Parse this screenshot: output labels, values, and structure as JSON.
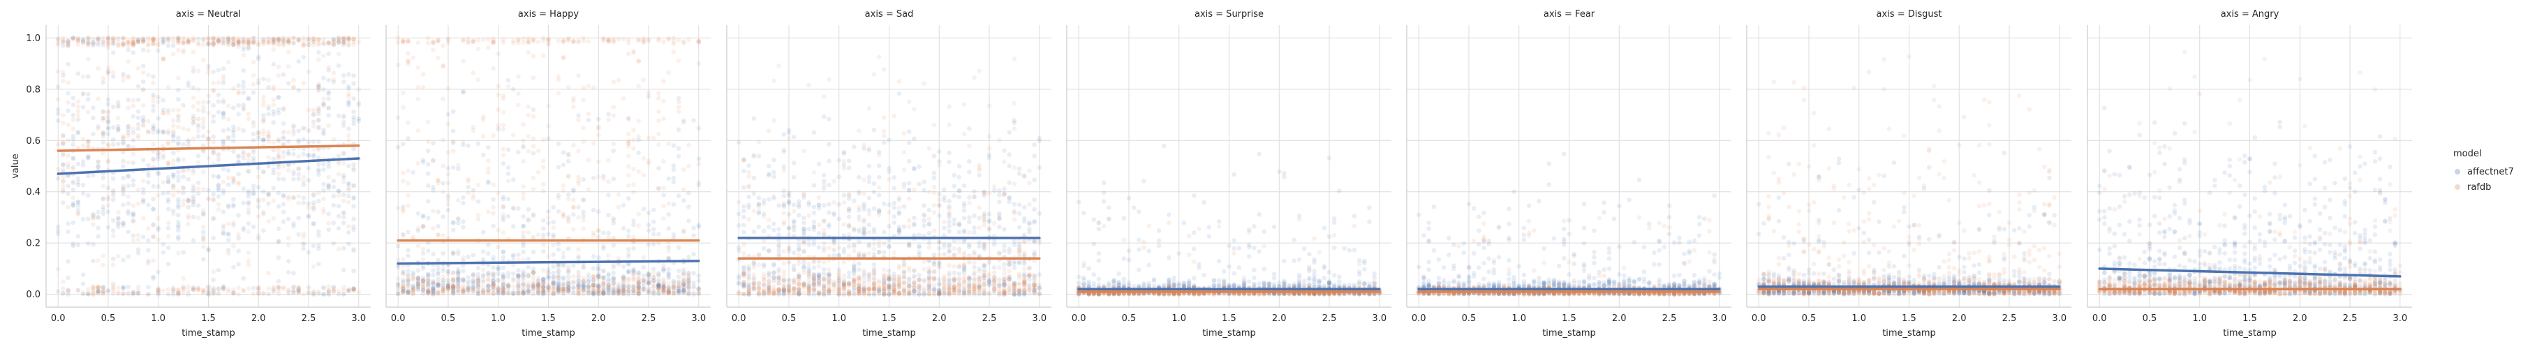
{
  "chart_data": {
    "type": "scatter",
    "facet_prefix": "axis = ",
    "facets": [
      "Neutral",
      "Happy",
      "Sad",
      "Surprise",
      "Fear",
      "Disgust",
      "Angry"
    ],
    "xlabel": "time_stamp",
    "ylabel": "value",
    "xlim": [
      -0.12,
      3.12
    ],
    "ylim": [
      -0.05,
      1.05
    ],
    "x_ticks": [
      0.0,
      0.5,
      1.0,
      1.5,
      2.0,
      2.5,
      3.0
    ],
    "x_tick_labels": [
      "0.0",
      "0.5",
      "1.0",
      "1.5",
      "2.0",
      "2.5",
      "3.0"
    ],
    "y_ticks": [
      0.0,
      0.2,
      0.4,
      0.6,
      0.8,
      1.0
    ],
    "y_tick_labels": [
      "0.0",
      "0.2",
      "0.4",
      "0.6",
      "0.8",
      "1.0"
    ],
    "grid": true,
    "legend": {
      "title": "model",
      "placement": "right"
    },
    "series": [
      {
        "name": "affectnet7",
        "color": "#4c72b0",
        "trend_lines": [
          [
            0.0,
            0.47,
            3.0,
            0.53
          ],
          [
            0.0,
            0.12,
            3.0,
            0.13
          ],
          [
            0.0,
            0.22,
            3.0,
            0.22
          ],
          [
            0.0,
            0.02,
            3.0,
            0.02
          ],
          [
            0.0,
            0.02,
            3.0,
            0.02
          ],
          [
            0.0,
            0.03,
            3.0,
            0.03
          ],
          [
            0.0,
            0.1,
            3.0,
            0.07
          ]
        ]
      },
      {
        "name": "rafdb",
        "color": "#dd8452",
        "trend_lines": [
          [
            0.0,
            0.56,
            3.0,
            0.58
          ],
          [
            0.0,
            0.21,
            3.0,
            0.21
          ],
          [
            0.0,
            0.14,
            3.0,
            0.14
          ],
          [
            0.0,
            0.01,
            3.0,
            0.01
          ],
          [
            0.0,
            0.01,
            3.0,
            0.01
          ],
          [
            0.0,
            0.02,
            3.0,
            0.02
          ],
          [
            0.0,
            0.02,
            3.0,
            0.02
          ]
        ]
      }
    ]
  }
}
